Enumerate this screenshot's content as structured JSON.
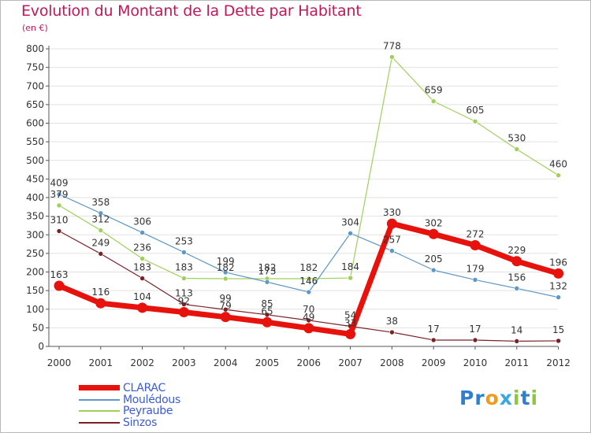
{
  "header": {
    "title": "Evolution du Montant de la Dette par Habitant",
    "subtitle": "(en €)"
  },
  "brand": {
    "letters": [
      "P",
      "r",
      "o",
      "x",
      "i",
      "t",
      "i"
    ],
    "colors": [
      "#2f7fd1",
      "#2f7fd1",
      "#f29a1d",
      "#3aa7e0",
      "#8dc63f",
      "#2f7fd1",
      "#8dc63f"
    ]
  },
  "colors": {
    "title": "#c2185b",
    "axis": "#444444",
    "grid": "#dddddd"
  },
  "chart_data": {
    "type": "line",
    "title": "Evolution du Montant de la Dette par Habitant",
    "subtitle": "(en €)",
    "x": [
      "2000",
      "2001",
      "2002",
      "2003",
      "2004",
      "2005",
      "2006",
      "2007",
      "2008",
      "2009",
      "2010",
      "2011",
      "2012"
    ],
    "ylim": [
      0,
      800
    ],
    "yticks": [
      0,
      50,
      100,
      150,
      200,
      250,
      300,
      350,
      400,
      450,
      500,
      550,
      600,
      650,
      700,
      750,
      800
    ],
    "grid": "horizontal",
    "legend_position": "bottom-left",
    "series": [
      {
        "name": "CLARAC",
        "color": "#e8120c",
        "width": 7,
        "values": [
          163,
          116,
          104,
          92,
          79,
          65,
          49,
          33,
          330,
          302,
          272,
          229,
          196
        ]
      },
      {
        "name": "Mouledous",
        "display": "Mouledous",
        "color": "#5d97c7",
        "width": 1.2,
        "values": [
          409,
          358,
          306,
          253,
          199,
          173,
          146,
          304,
          257,
          205,
          179,
          156,
          132
        ]
      },
      {
        "name": "Peyraube",
        "color": "#9ed05b",
        "width": 1.2,
        "values": [
          379,
          312,
          236,
          183,
          182,
          182,
          182,
          184,
          778,
          659,
          605,
          530,
          460
        ]
      },
      {
        "name": "Sinzos",
        "color": "#7a2027",
        "width": 1.2,
        "values": [
          310,
          249,
          183,
          113,
          99,
          85,
          70,
          54,
          38,
          17,
          17,
          14,
          15
        ]
      }
    ]
  }
}
